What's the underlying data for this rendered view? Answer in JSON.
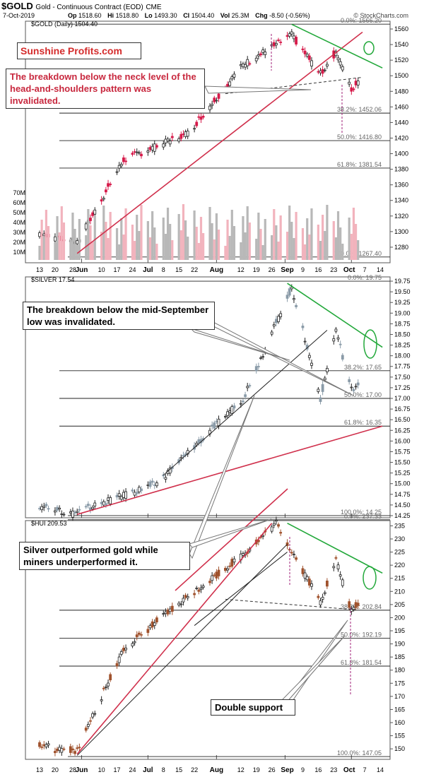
{
  "header": {
    "symbol": "$GOLD",
    "name": "Gold - Continuous Contract (EOD)",
    "exchange": "CME",
    "date": "7-Oct-2019",
    "stats": [
      {
        "k": "Op",
        "v": "1518.60"
      },
      {
        "k": "Hi",
        "v": "1518.80"
      },
      {
        "k": "Lo",
        "v": "1493.30"
      },
      {
        "k": "Cl",
        "v": "1504.40"
      },
      {
        "k": "Vol",
        "v": "25.3M"
      },
      {
        "k": "Chg",
        "v": "-8.50 (-0.56%)"
      }
    ],
    "source": "© StockCharts.com"
  },
  "logo": {
    "part1": "Sunshine",
    "part2": "Profits.com"
  },
  "annotations": {
    "gold": "The breakdown below the neck level of the head-and-shoulders pattern was invalidated.",
    "silver": "The breakdown below the mid-September low was invalidated.",
    "hui": "Silver outperformed gold while miners underperformed it.",
    "support": "Double support"
  },
  "colors": {
    "up_candle": "#ffffff",
    "gold_down": "#d61a4a",
    "silver_down": "#8a9ba8",
    "hui_down": "#a0522d",
    "red_trend": "#d0304c",
    "green_trend": "#22a83a",
    "volume_up": "#b8b8b8",
    "volume_down": "#f2b3bd"
  },
  "chart_data": [
    {
      "type": "candlestick",
      "title": "$GOLD (Daily) 1504.40",
      "ylim": [
        1260,
        1570
      ],
      "yticks": [
        1280,
        1300,
        1320,
        1340,
        1360,
        1380,
        1400,
        1420,
        1440,
        1460,
        1480,
        1500,
        1520,
        1540,
        1560
      ],
      "volume_axis_labels": [
        "10M",
        "20M",
        "30M",
        "40M",
        "50M",
        "60M",
        "70M"
      ],
      "xlabels": [
        "13",
        "20",
        "28",
        "Jun",
        "10",
        "17",
        "24",
        "Jul",
        "8",
        "15",
        "22",
        "Aug",
        "12",
        "19",
        "26",
        "Sep",
        "9",
        "16",
        "23",
        "Oct",
        "7",
        "14"
      ],
      "fib_levels": [
        {
          "label": "0.0%: 1566.20",
          "value": 1566.2
        },
        {
          "label": "38.2%: 1452.06",
          "value": 1452.06
        },
        {
          "label": "50.0%: 1416.80",
          "value": 1416.8
        },
        {
          "label": "61.8%: 1381.54",
          "value": 1381.54
        },
        {
          "label": "100.0%: 1267.40",
          "value": 1267.4
        }
      ],
      "key_points": [
        {
          "date": "May 30",
          "close": 1286
        },
        {
          "date": "Jun 20",
          "close": 1392
        },
        {
          "date": "Jul 19",
          "close": 1426
        },
        {
          "date": "Aug 13",
          "close": 1514
        },
        {
          "date": "Sep 4",
          "close": 1552
        },
        {
          "date": "Sep 17",
          "close": 1502
        },
        {
          "date": "Sep 24",
          "close": 1531
        },
        {
          "date": "Oct 1",
          "close": 1481
        },
        {
          "date": "Oct 7",
          "close": 1504.4
        }
      ]
    },
    {
      "type": "candlestick",
      "title": "$SILVER 17.54",
      "ylim": [
        14.2,
        19.85
      ],
      "yticks": [
        14.25,
        14.5,
        14.75,
        15.0,
        15.25,
        15.5,
        15.75,
        16.0,
        16.25,
        16.5,
        16.75,
        17.0,
        17.25,
        17.5,
        17.75,
        18.0,
        18.25,
        18.5,
        18.75,
        19.0,
        19.25,
        19.5,
        19.75
      ],
      "fib_levels": [
        {
          "label": "0.0%: 19.75",
          "value": 19.75
        },
        {
          "label": "38.2%: 17.65",
          "value": 17.65
        },
        {
          "label": "50.0%: 17.00",
          "value": 17.0
        },
        {
          "label": "61.8%: 16.35",
          "value": 16.35
        },
        {
          "label": "100.0%: 14.25",
          "value": 14.25
        }
      ],
      "key_points": [
        {
          "date": "May 28",
          "close": 14.3
        },
        {
          "date": "Jul 5",
          "close": 15.0
        },
        {
          "date": "Aug 13",
          "close": 17.0
        },
        {
          "date": "Sep 4",
          "close": 19.6
        },
        {
          "date": "Sep 17",
          "close": 17.0
        },
        {
          "date": "Sep 24",
          "close": 18.6
        },
        {
          "date": "Oct 1",
          "close": 17.2
        },
        {
          "date": "Oct 7",
          "close": 17.54
        }
      ]
    },
    {
      "type": "candlestick",
      "title": "$HUI 209.53",
      "ylim": [
        146,
        237
      ],
      "yticks": [
        150,
        155,
        160,
        165,
        170,
        175,
        180,
        185,
        190,
        195,
        200,
        205,
        210,
        215,
        220,
        225,
        230,
        235
      ],
      "xlabels": [
        "13",
        "20",
        "28",
        "Jun",
        "10",
        "17",
        "24",
        "Jul",
        "8",
        "15",
        "22",
        "Aug",
        "12",
        "19",
        "26",
        "Sep",
        "9",
        "16",
        "23",
        "Oct",
        "7",
        "14"
      ],
      "fib_levels": [
        {
          "label": "0.0%: 237.33",
          "value": 237.33
        },
        {
          "label": "38.2%: 202.84",
          "value": 202.84
        },
        {
          "label": "50.0%: 192.19",
          "value": 192.19
        },
        {
          "label": "61.8%: 181.54",
          "value": 181.54
        },
        {
          "label": "100.0%: 147.05",
          "value": 147.05
        }
      ],
      "key_points": [
        {
          "date": "May 29",
          "close": 148
        },
        {
          "date": "Jun 20",
          "close": 188
        },
        {
          "date": "Jul 19",
          "close": 208
        },
        {
          "date": "Aug 13",
          "close": 224
        },
        {
          "date": "Aug 28",
          "close": 236
        },
        {
          "date": "Sep 17",
          "close": 206
        },
        {
          "date": "Sep 24",
          "close": 222
        },
        {
          "date": "Oct 1",
          "close": 202
        },
        {
          "date": "Oct 7",
          "close": 209.53
        }
      ]
    }
  ]
}
